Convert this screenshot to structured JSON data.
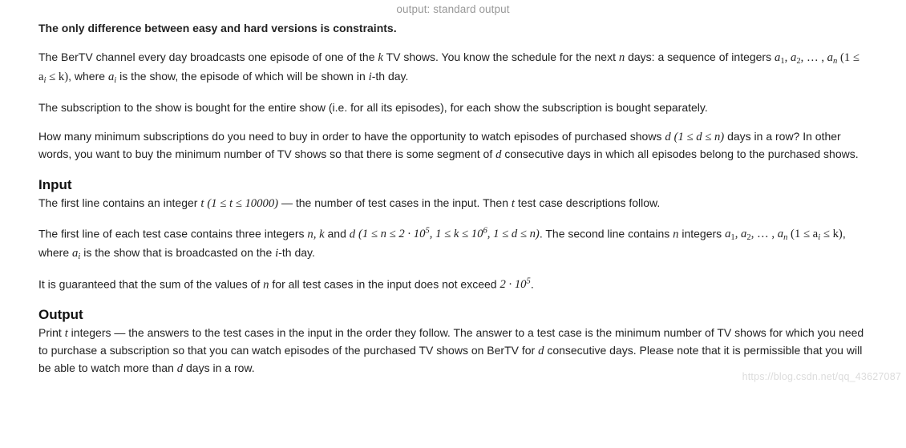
{
  "breadcrumb": "output: standard output",
  "para_diff": "The only difference between easy and hard versions is constraints.",
  "p_story_a": "The BerTV channel every day broadcasts one episode of one of the ",
  "p_story_b": " TV shows. You know the schedule for the next ",
  "p_story_c": " days: a sequence of integers ",
  "p_story_d": ", where ",
  "p_story_e": " is the show, the episode of which will be shown in ",
  "p_story_f": "-th day.",
  "p_sub": "The subscription to the show is bought for the entire show (i.e. for all its episodes), for each show the subscription is bought separately.",
  "p_q_a": "How many minimum subscriptions do you need to buy in order to have the opportunity to watch episodes of purchased shows ",
  "p_q_b": " days in a row? In other words, you want to buy the minimum number of TV shows so that there is some segment of ",
  "p_q_c": " consecutive days in which all episodes belong to the purchased shows.",
  "input_title": "Input",
  "p_in1_a": "The first line contains an integer ",
  "p_in1_b": " — the number of test cases in the input. Then ",
  "p_in1_c": " test case descriptions follow.",
  "p_in2_a": "The first line of each test case contains three integers ",
  "p_in2_b": " and ",
  "p_in2_c": ". The second line contains ",
  "p_in2_d": " integers ",
  "p_in2_e": ", where ",
  "p_in2_f": " is the show that is broadcasted on the ",
  "p_in2_g": "-th day.",
  "p_in3_a": "It is guaranteed that the sum of the values of ",
  "p_in3_b": " for all test cases in the input does not exceed ",
  "p_in3_c": ".",
  "output_title": "Output",
  "p_out_a": "Print ",
  "p_out_b": " integers — the answers to the test cases in the input in the order they follow. The answer to a test case is the minimum number of TV shows for which you need to purchase a subscription so that you can watch episodes of the purchased TV shows on BerTV for ",
  "p_out_c": " consecutive days. Please note that it is permissible that you will be able to watch more than ",
  "p_out_d": " days in a row.",
  "m": {
    "k": "k",
    "n": "n",
    "t": "t",
    "d": "d",
    "i": "i",
    "a_i": "a",
    "sub_i": "i",
    "seq": "a",
    "sub1": "1",
    "sub2": "2",
    "subn": "n",
    "comma": ", ",
    "dots": ", … , ",
    "bound_ai": "(1 ≤ a",
    "bound_ai_end": " ≤ k)",
    "bound_d": "(1 ≤ d ≤ n)",
    "bound_t": "(1 ≤ t ≤ 10000)",
    "nkd": "n, k",
    "bound_nkd_a": "(1 ≤ n ≤ 2 · 10",
    "bound_nkd_b": ", 1 ≤ k ≤ 10",
    "bound_nkd_c": ", 1 ≤ d ≤ n)",
    "sup5": "5",
    "sup6": "6",
    "twoE5": "2 · 10"
  },
  "watermark": "https://blog.csdn.net/qq_43627087"
}
